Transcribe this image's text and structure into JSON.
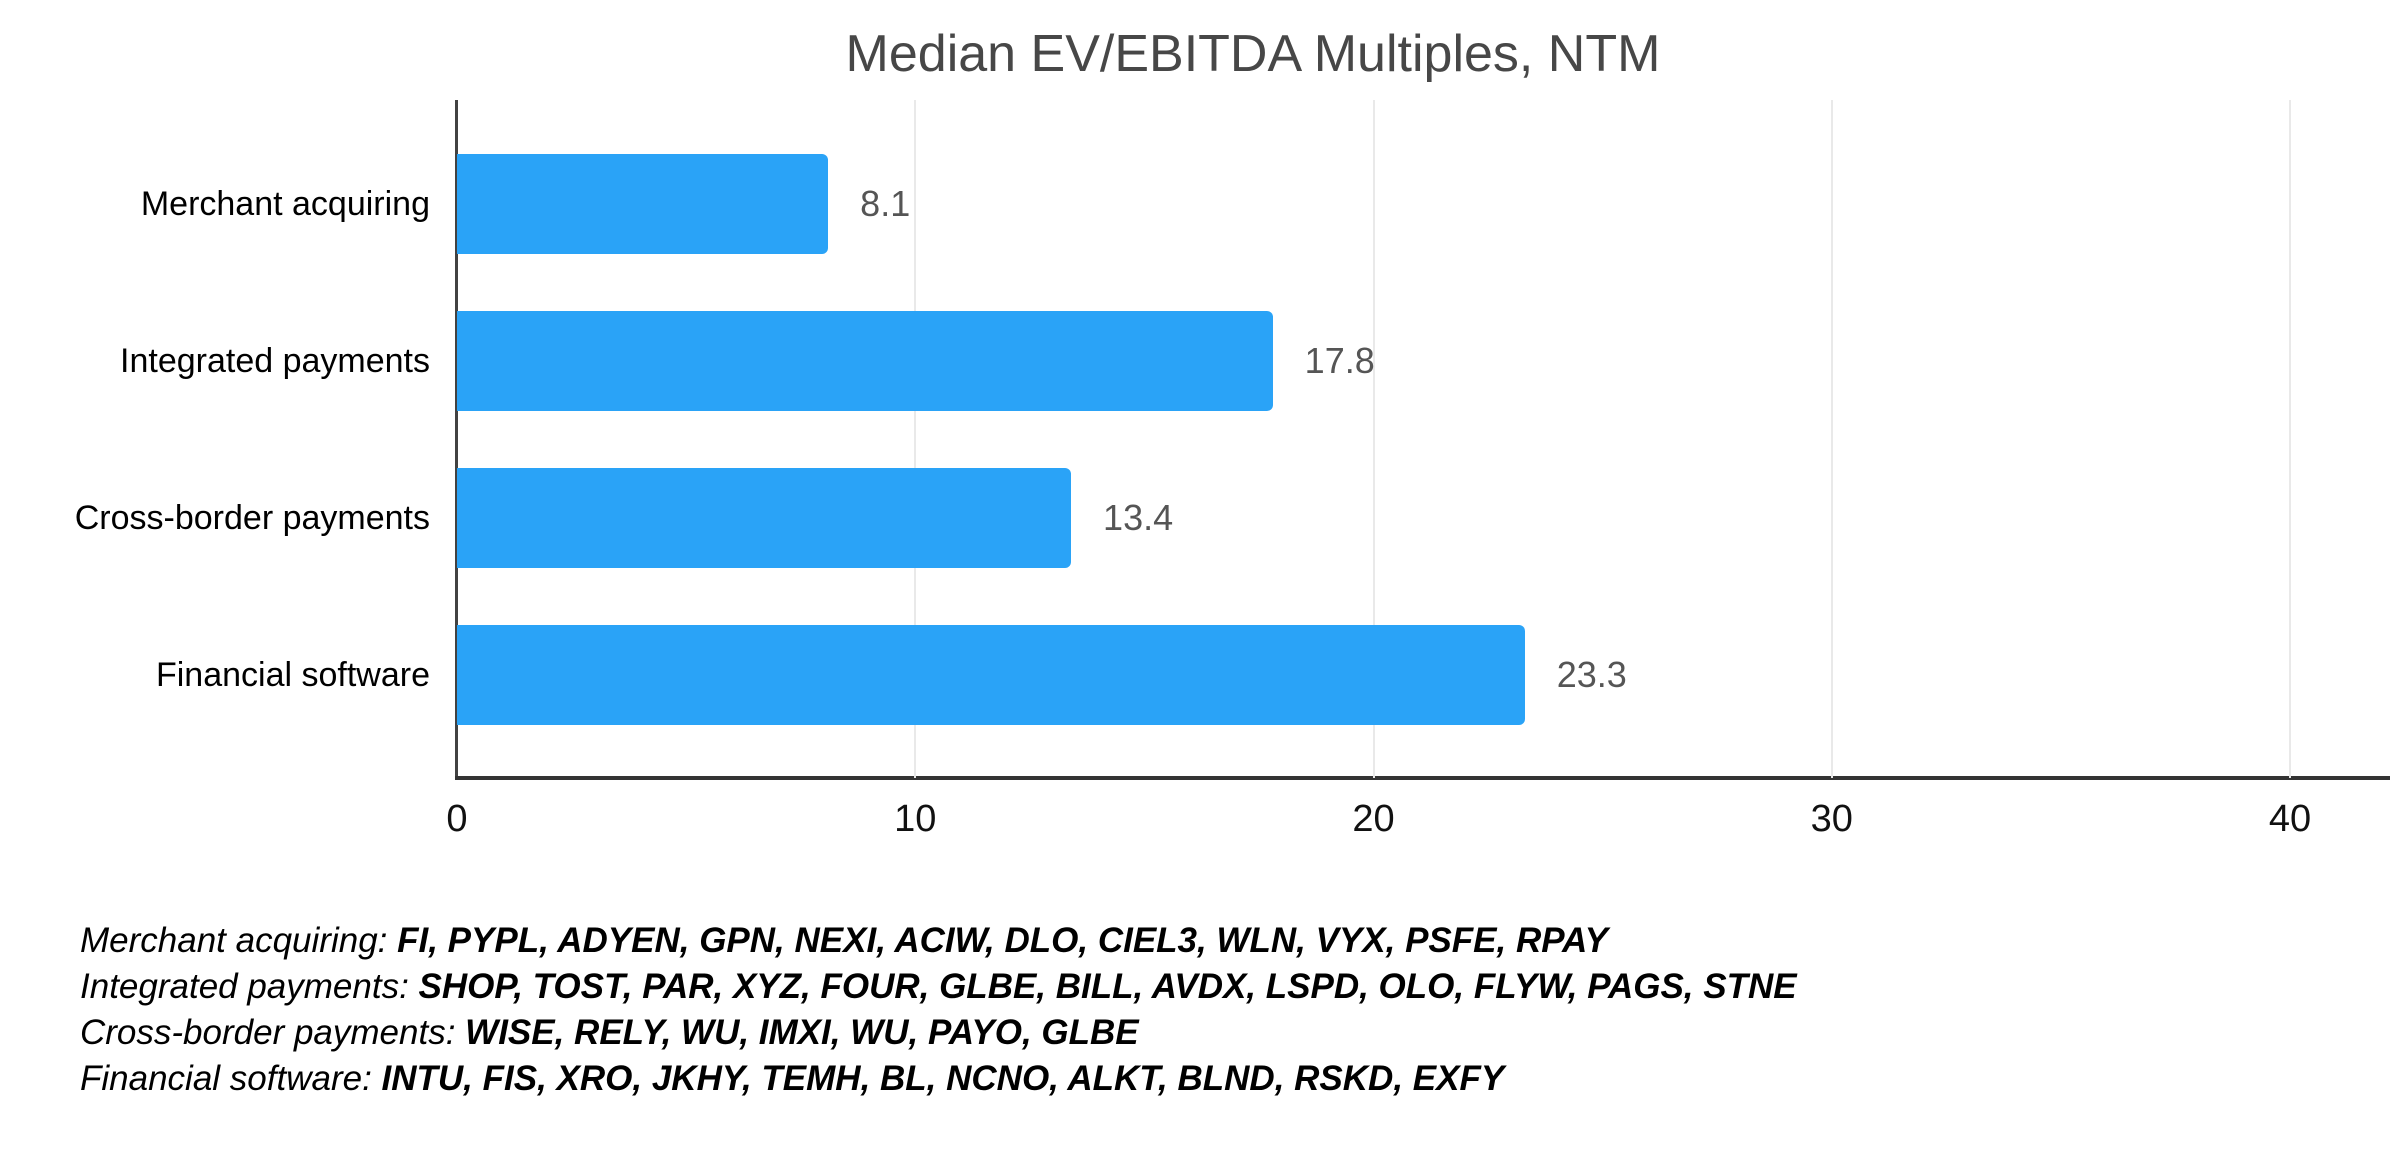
{
  "chart_data": {
    "type": "bar",
    "orientation": "horizontal",
    "title": "Median EV/EBITDA Multiples, NTM",
    "categories": [
      "Merchant acquiring",
      "Integrated payments",
      "Cross-border payments",
      "Financial software"
    ],
    "values": [
      8.1,
      17.8,
      13.4,
      23.3
    ],
    "value_labels": [
      "8.1",
      "17.8",
      "13.4",
      "23.3"
    ],
    "xlabel": "",
    "ylabel": "",
    "xlim": [
      0,
      40
    ],
    "xticks": [
      0,
      10,
      20,
      30,
      40
    ],
    "grid": true,
    "legend_position": "none",
    "bar_color": "#2aa3f7",
    "title_color": "#474747",
    "value_label_color": "#555555",
    "axis_color": "#333333",
    "gridline_color": "#e9e9e9"
  },
  "footer": {
    "lines": [
      {
        "label": "Merchant acquiring:",
        "tickers": "FI, PYPL, ADYEN, GPN, NEXI, ACIW, DLO, CIEL3, WLN, VYX, PSFE, RPAY"
      },
      {
        "label": "Integrated payments:",
        "tickers": "SHOP, TOST, PAR, XYZ, FOUR, GLBE, BILL, AVDX, LSPD, OLO, FLYW, PAGS, STNE"
      },
      {
        "label": "Cross-border payments:",
        "tickers": "WISE, RELY, WU, IMXI, WU, PAYO, GLBE"
      },
      {
        "label": "Financial software:",
        "tickers": "INTU, FIS, XRO, JKHY, TEMH, BL, NCNO, ALKT, BLND, RSKD, EXFY"
      }
    ]
  }
}
